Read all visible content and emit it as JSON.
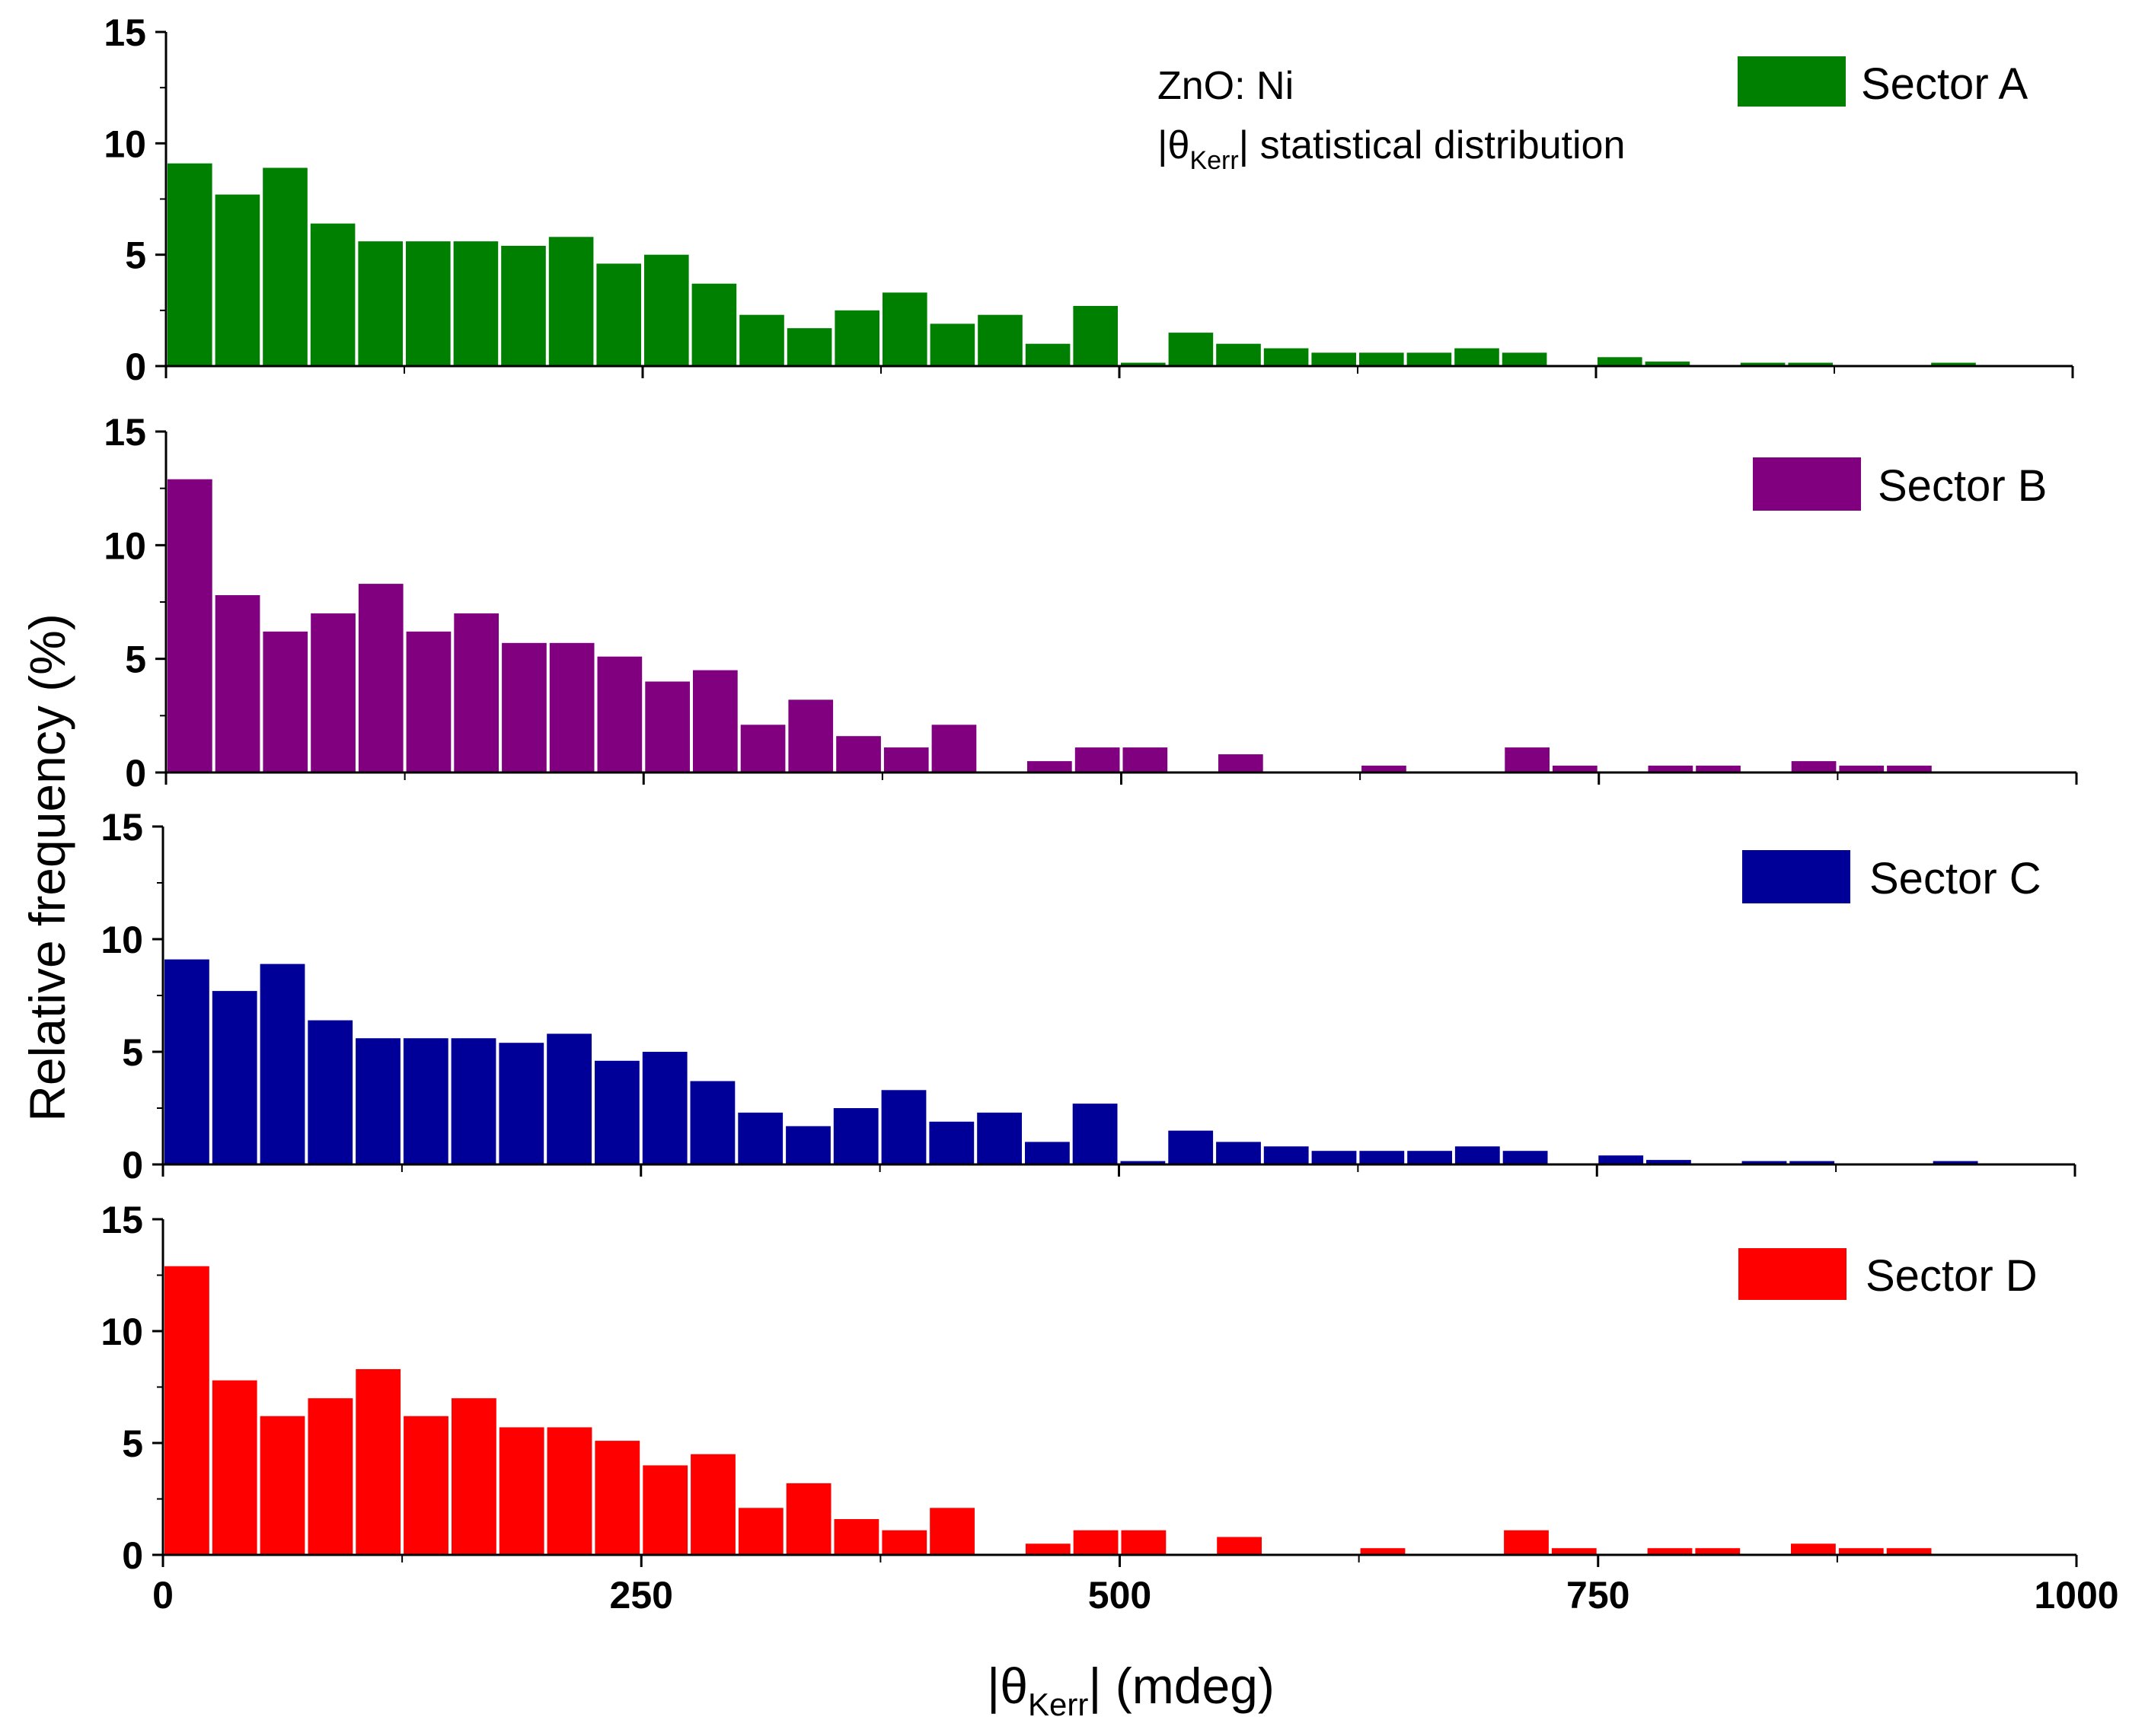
{
  "chart_data": {
    "type": "bar",
    "title": "",
    "annotation": {
      "line1": "ZnO: Ni",
      "line2_prefix": "|θ",
      "line2_sub": "Kerr",
      "line2_suffix": "| statistical distribution"
    },
    "xlabel": {
      "prefix": "|θ",
      "sub": "Kerr",
      "suffix": "| (mdeg)"
    },
    "ylabel": "Relative frequency (%)",
    "xlim": [
      0,
      1000
    ],
    "ylim": [
      0,
      15
    ],
    "xticks": [
      0,
      250,
      500,
      750,
      1000
    ],
    "yticks": [
      0,
      5,
      10,
      15
    ],
    "bin_width": 25,
    "bin_starts": [
      0,
      25,
      50,
      75,
      100,
      125,
      150,
      175,
      200,
      225,
      250,
      275,
      300,
      325,
      350,
      375,
      400,
      425,
      450,
      475,
      500,
      525,
      550,
      575,
      600,
      625,
      650,
      675,
      700,
      725,
      750,
      775,
      800,
      825,
      850,
      875,
      900,
      925,
      950,
      975
    ],
    "panels": [
      {
        "name": "Sector A",
        "color": "#008000",
        "values": [
          9.1,
          7.7,
          8.9,
          6.4,
          5.6,
          5.6,
          5.6,
          5.4,
          5.8,
          4.6,
          5.0,
          3.7,
          2.3,
          1.7,
          2.5,
          3.3,
          1.9,
          2.3,
          1.0,
          2.7,
          0.15,
          1.5,
          1.0,
          0.8,
          0.6,
          0.6,
          0.6,
          0.8,
          0.6,
          0,
          0.4,
          0.2,
          0,
          0.15,
          0.15,
          0,
          0,
          0.15,
          0,
          0
        ]
      },
      {
        "name": "Sector B",
        "color": "#800080",
        "values": [
          12.9,
          7.8,
          6.2,
          7.0,
          8.3,
          6.2,
          7.0,
          5.7,
          5.7,
          5.1,
          4.0,
          4.5,
          2.1,
          3.2,
          1.6,
          1.1,
          2.1,
          0,
          0.5,
          1.1,
          1.1,
          0,
          0.8,
          0,
          0,
          0.3,
          0,
          0,
          1.1,
          0.3,
          0,
          0.3,
          0.3,
          0,
          0.5,
          0.3,
          0.3,
          0,
          0,
          0
        ]
      },
      {
        "name": "Sector C",
        "color": "#000099",
        "values": [
          9.1,
          7.7,
          8.9,
          6.4,
          5.6,
          5.6,
          5.6,
          5.4,
          5.8,
          4.6,
          5.0,
          3.7,
          2.3,
          1.7,
          2.5,
          3.3,
          1.9,
          2.3,
          1.0,
          2.7,
          0.15,
          1.5,
          1.0,
          0.8,
          0.6,
          0.6,
          0.6,
          0.8,
          0.6,
          0,
          0.4,
          0.2,
          0,
          0.15,
          0.15,
          0,
          0,
          0.15,
          0,
          0
        ]
      },
      {
        "name": "Sector D",
        "color": "#ff0000",
        "values": [
          12.9,
          7.8,
          6.2,
          7.0,
          8.3,
          6.2,
          7.0,
          5.7,
          5.7,
          5.1,
          4.0,
          4.5,
          2.1,
          3.2,
          1.6,
          1.1,
          2.1,
          0,
          0.5,
          1.1,
          1.1,
          0,
          0.8,
          0,
          0,
          0.3,
          0,
          0,
          1.1,
          0.3,
          0,
          0.3,
          0.3,
          0,
          0.5,
          0.3,
          0.3,
          0,
          0,
          0
        ]
      }
    ]
  }
}
